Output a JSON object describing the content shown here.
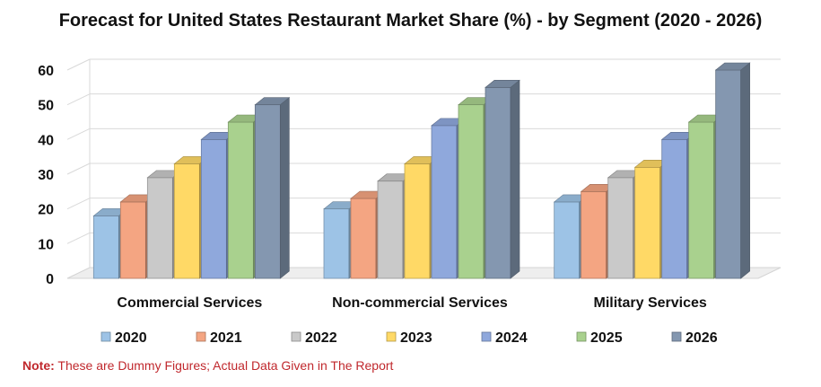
{
  "note": {
    "prefix": "Note:",
    "text": " These are Dummy Figures; Actual Data Given in The Report"
  },
  "chart_data": {
    "type": "bar",
    "title": "Forecast for United States Restaurant Market Share (%) - by Segment (2020 - 2026)",
    "xlabel": "",
    "ylabel": "",
    "ylim": [
      0,
      60
    ],
    "yticks": [
      "0",
      "10",
      "20",
      "30",
      "40",
      "50",
      "60"
    ],
    "grid": true,
    "legend_position": "bottom",
    "categories": [
      "Commercial Services",
      "Non-commercial Services",
      "Military Services"
    ],
    "series": [
      {
        "name": "2020",
        "color": "#9dc3e6",
        "values": [
          18,
          20,
          22
        ]
      },
      {
        "name": "2021",
        "color": "#f4a582",
        "values": [
          22,
          23,
          25
        ]
      },
      {
        "name": "2022",
        "color": "#c9c9c9",
        "values": [
          29,
          28,
          29
        ]
      },
      {
        "name": "2023",
        "color": "#ffd966",
        "values": [
          33,
          33,
          32
        ]
      },
      {
        "name": "2024",
        "color": "#8fa8dc",
        "values": [
          40,
          44,
          40
        ]
      },
      {
        "name": "2025",
        "color": "#a9d18e",
        "values": [
          45,
          50,
          45
        ]
      },
      {
        "name": "2026",
        "color": "#8497b0",
        "values": [
          50,
          55,
          60
        ]
      }
    ]
  }
}
